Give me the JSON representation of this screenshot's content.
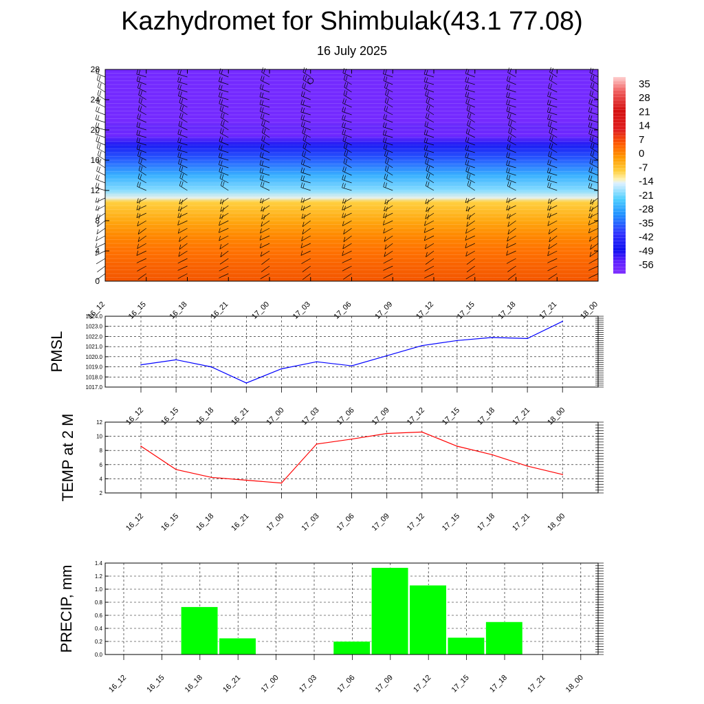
{
  "title": "Kazhydromet for Shimbulak(43.1 77.08)",
  "subtitle": "16 July 2025",
  "time_labels": [
    "16_12",
    "16_15",
    "16_18",
    "16_21",
    "17_00",
    "17_03",
    "17_06",
    "17_09",
    "17_12",
    "17_15",
    "17_18",
    "17_21",
    "18_00"
  ],
  "chart_data": [
    {
      "type": "heatmap",
      "description": "Vertical cross-section: temperature shading by height with wind barbs",
      "y_ticks": [
        0,
        4,
        8,
        12,
        16,
        20,
        24,
        28
      ],
      "ylim": [
        0,
        28
      ],
      "x_tick_labels": [
        "16_12",
        "16_15",
        "16_18",
        "16_21",
        "17_00",
        "17_03",
        "17_06",
        "17_09",
        "17_12",
        "17_15",
        "17_18",
        "17_21",
        "18_00"
      ],
      "colorbar": {
        "labels": [
          "35",
          "28",
          "21",
          "14",
          "7",
          "0",
          "-7",
          "-14",
          "-21",
          "-28",
          "-35",
          "-42",
          "-49",
          "-56"
        ],
        "range": [
          -60,
          38
        ]
      },
      "profile": [
        {
          "h": 0,
          "t": 18
        },
        {
          "h": 2,
          "t": 14
        },
        {
          "h": 4,
          "t": 9
        },
        {
          "h": 6,
          "t": 4
        },
        {
          "h": 8,
          "t": -2
        },
        {
          "h": 10.5,
          "t": -8
        },
        {
          "h": 11,
          "t": -16
        },
        {
          "h": 12,
          "t": -22
        },
        {
          "h": 14,
          "t": -30
        },
        {
          "h": 16,
          "t": -40
        },
        {
          "h": 18,
          "t": -50
        },
        {
          "h": 19.3,
          "t": -60
        },
        {
          "h": 20.5,
          "t": -55
        },
        {
          "h": 21,
          "t": -59
        },
        {
          "h": 28,
          "t": -59
        }
      ]
    },
    {
      "type": "line",
      "ylabel": "PMSL",
      "ylim": [
        1017.0,
        1024.0
      ],
      "y_ticks": [
        "1017.0",
        "1018.0",
        "1019.0",
        "1020.0",
        "1021.0",
        "1022.0",
        "1023.0",
        "1024.0"
      ],
      "categories": [
        "16_12",
        "16_15",
        "16_18",
        "16_21",
        "17_00",
        "17_03",
        "17_06",
        "17_09",
        "17_12",
        "17_15",
        "17_18",
        "17_21",
        "18_00"
      ],
      "series": [
        {
          "values": [
            1019.2,
            1019.7,
            1019.0,
            1017.4,
            1018.8,
            1019.5,
            1019.1,
            1020.1,
            1021.1,
            1021.6,
            1021.9,
            1021.8,
            1023.5
          ],
          "color": "#0000ff"
        }
      ]
    },
    {
      "type": "line",
      "ylabel": "TEMP at 2 M",
      "ylim": [
        2,
        12
      ],
      "y_ticks": [
        "2",
        "4",
        "6",
        "8",
        "10",
        "12"
      ],
      "categories": [
        "16_12",
        "16_15",
        "16_18",
        "16_21",
        "17_00",
        "17_03",
        "17_06",
        "17_09",
        "17_12",
        "17_15",
        "17_18",
        "17_21",
        "18_00"
      ],
      "series": [
        {
          "values": [
            8.6,
            5.3,
            4.2,
            3.8,
            3.4,
            8.9,
            9.6,
            10.4,
            10.6,
            8.6,
            7.4,
            5.8,
            4.6
          ],
          "color": "#ff0000"
        }
      ]
    },
    {
      "type": "bar",
      "ylabel": "PRECIP, mm",
      "ylim": [
        0,
        1.4
      ],
      "y_ticks": [
        "0.0",
        "0.2",
        "0.4",
        "0.6",
        "0.8",
        "1.0",
        "1.2",
        "1.4"
      ],
      "categories": [
        "16_12",
        "16_15",
        "16_18",
        "16_21",
        "17_00",
        "17_03",
        "17_06",
        "17_09",
        "17_12",
        "17_15",
        "17_18",
        "17_21",
        "18_00"
      ],
      "series": [
        {
          "values": [
            0,
            0.73,
            0.25,
            0,
            0,
            0.2,
            1.33,
            1.06,
            0.26,
            0.5,
            0,
            0,
            0
          ],
          "color": "#00ff00"
        }
      ]
    }
  ]
}
